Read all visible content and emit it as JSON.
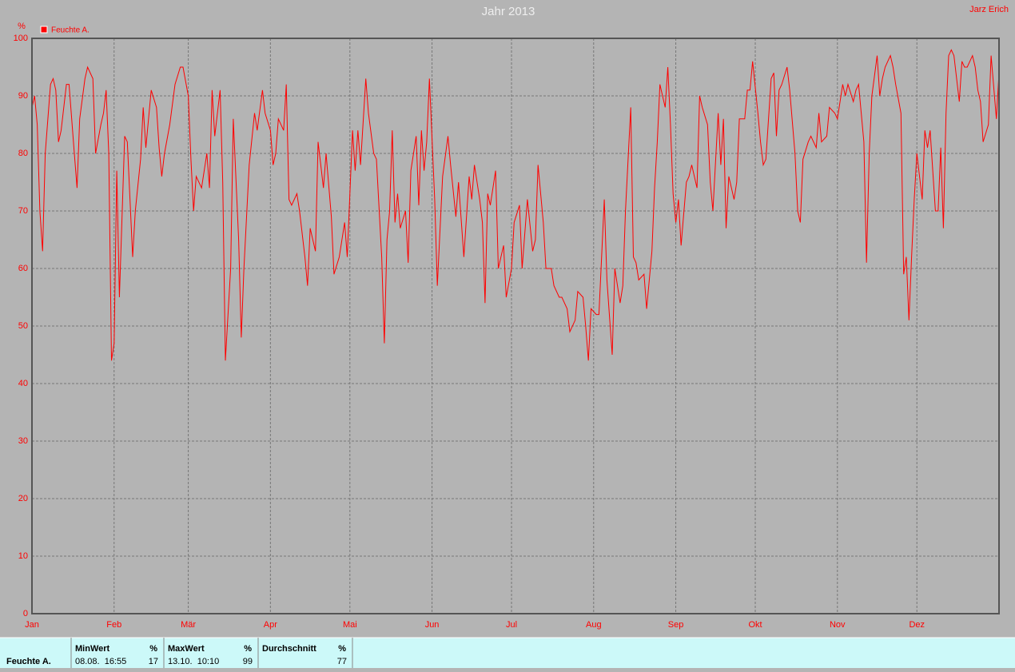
{
  "chart_data": {
    "type": "line",
    "title": "Jahr 2013",
    "author": "Jarz Erich",
    "y_label": "%",
    "x": [
      0,
      1,
      2,
      3,
      4,
      5,
      7,
      8,
      9,
      10,
      11,
      13,
      14,
      16,
      17,
      18,
      20,
      21,
      23,
      24,
      26,
      27,
      28,
      29,
      30,
      31,
      32,
      33,
      35,
      36,
      38,
      39,
      41,
      42,
      43,
      45,
      47,
      48,
      49,
      50,
      52,
      54,
      56,
      57,
      59,
      60,
      61,
      62,
      64,
      66,
      67,
      68,
      69,
      71,
      72,
      73,
      75,
      76,
      78,
      79,
      80,
      82,
      84,
      85,
      87,
      88,
      90,
      91,
      92,
      93,
      95,
      96,
      97,
      98,
      100,
      101,
      103,
      104,
      105,
      107,
      108,
      110,
      111,
      113,
      114,
      116,
      118,
      119,
      121,
      122,
      123,
      124,
      126,
      127,
      129,
      130,
      132,
      133,
      134,
      135,
      136,
      137,
      138,
      139,
      141,
      142,
      143,
      145,
      146,
      147,
      148,
      149,
      150,
      152,
      153,
      155,
      157,
      158,
      160,
      161,
      163,
      165,
      166,
      167,
      169,
      170,
      171,
      172,
      173,
      175,
      176,
      178,
      179,
      181,
      182,
      184,
      185,
      187,
      189,
      190,
      191,
      193,
      194,
      196,
      197,
      199,
      200,
      202,
      203,
      205,
      206,
      208,
      209,
      210,
      211,
      213,
      214,
      216,
      217,
      219,
      220,
      222,
      223,
      224,
      226,
      227,
      228,
      229,
      231,
      232,
      234,
      235,
      236,
      237,
      239,
      240,
      241,
      242,
      243,
      244,
      245,
      247,
      248,
      249,
      251,
      252,
      253,
      255,
      256,
      257,
      259,
      260,
      261,
      262,
      263,
      265,
      266,
      267,
      269,
      270,
      271,
      272,
      274,
      275,
      276,
      277,
      279,
      280,
      281,
      282,
      283,
      285,
      286,
      288,
      289,
      290,
      291,
      293,
      294,
      296,
      297,
      298,
      300,
      301,
      303,
      304,
      306,
      307,
      308,
      310,
      311,
      312,
      314,
      315,
      316,
      317,
      319,
      320,
      321,
      322,
      324,
      325,
      326,
      328,
      329,
      330,
      331,
      332,
      333,
      334,
      336,
      337,
      338,
      339,
      341,
      342,
      343,
      344,
      345,
      346,
      347,
      348,
      350,
      351,
      352,
      353,
      355,
      356,
      357,
      358,
      359,
      361,
      362,
      364,
      365
    ],
    "series": [
      {
        "name": "Feuchte A.",
        "color": "#ff0000",
        "values": [
          88,
          90,
          85,
          70,
          63,
          80,
          92,
          93,
          91,
          82,
          84,
          92,
          92,
          80,
          74,
          86,
          93,
          95,
          93,
          80,
          85,
          87,
          91,
          80,
          44,
          47,
          77,
          55,
          83,
          82,
          62,
          70,
          79,
          88,
          81,
          91,
          88,
          81,
          76,
          80,
          85,
          92,
          95,
          95,
          90,
          79,
          70,
          76,
          74,
          80,
          74,
          91,
          83,
          91,
          75,
          44,
          60,
          86,
          65,
          48,
          60,
          78,
          87,
          84,
          91,
          87,
          84,
          78,
          80,
          86,
          84,
          92,
          72,
          71,
          73,
          70,
          62,
          57,
          67,
          63,
          82,
          74,
          80,
          69,
          59,
          62,
          68,
          62,
          84,
          77,
          84,
          78,
          93,
          87,
          80,
          79,
          62,
          47,
          65,
          70,
          84,
          68,
          73,
          67,
          70,
          61,
          77,
          83,
          71,
          84,
          77,
          82,
          93,
          72,
          57,
          76,
          83,
          78,
          69,
          75,
          62,
          76,
          72,
          78,
          72,
          68,
          54,
          73,
          71,
          77,
          60,
          64,
          55,
          60,
          68,
          71,
          60,
          72,
          63,
          65,
          78,
          68,
          60,
          60,
          57,
          55,
          55,
          53,
          49,
          51,
          56,
          55,
          50,
          44,
          53,
          52,
          52,
          72,
          58,
          45,
          60,
          54,
          57,
          70,
          88,
          62,
          61,
          58,
          59,
          53,
          63,
          74,
          82,
          92,
          88,
          95,
          85,
          73,
          68,
          72,
          64,
          75,
          76,
          78,
          74,
          90,
          88,
          85,
          75,
          70,
          87,
          78,
          86,
          67,
          76,
          72,
          75,
          86,
          86,
          91,
          91,
          96,
          87,
          82,
          78,
          79,
          93,
          94,
          83,
          91,
          92,
          95,
          91,
          80,
          70,
          68,
          79,
          82,
          83,
          81,
          87,
          82,
          83,
          88,
          87,
          86,
          92,
          90,
          92,
          89,
          91,
          92,
          82,
          61,
          80,
          90,
          97,
          90,
          93,
          95,
          97,
          95,
          92,
          87,
          59,
          62,
          51,
          62,
          72,
          80,
          72,
          84,
          81,
          84,
          70,
          70,
          81,
          67,
          87,
          97,
          98,
          97,
          89,
          96,
          95,
          95,
          97,
          95,
          91,
          89,
          82,
          85,
          97,
          86,
          94
        ]
      }
    ],
    "xlim": [
      0,
      365
    ],
    "xticks": [
      {
        "value": 0,
        "label": "Jan"
      },
      {
        "value": 31,
        "label": "Feb"
      },
      {
        "value": 59,
        "label": "Mär"
      },
      {
        "value": 90,
        "label": "Apr"
      },
      {
        "value": 120,
        "label": "Mai"
      },
      {
        "value": 151,
        "label": "Jun"
      },
      {
        "value": 181,
        "label": "Jul"
      },
      {
        "value": 212,
        "label": "Aug"
      },
      {
        "value": 243,
        "label": "Sep"
      },
      {
        "value": 273,
        "label": "Okt"
      },
      {
        "value": 304,
        "label": "Nov"
      },
      {
        "value": 334,
        "label": "Dez"
      }
    ],
    "ylim": [
      0,
      100
    ],
    "yticks": [
      0,
      10,
      20,
      30,
      40,
      50,
      60,
      70,
      80,
      90,
      100
    ],
    "grid": true
  },
  "summary_table": {
    "row_label": "Feuchte A.",
    "columns": [
      {
        "header": "MinWert",
        "unit": "%",
        "time": "08.08.  16:55",
        "value": 17
      },
      {
        "header": "MaxWert",
        "unit": "%",
        "time": "13.10.  10:10",
        "value": 99
      },
      {
        "header": "Durchschnitt",
        "unit": "%",
        "time": "",
        "value": 77
      }
    ]
  }
}
